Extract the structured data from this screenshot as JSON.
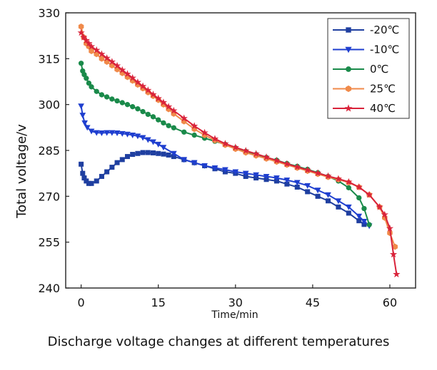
{
  "chart_data": {
    "type": "line",
    "title": "",
    "caption": "Discharge voltage changes at different temperatures",
    "xlabel": "Time/min",
    "ylabel": "Total voltage/v",
    "xlim": [
      -3,
      65
    ],
    "ylim": [
      240,
      330
    ],
    "xticks": [
      "0",
      "15",
      "30",
      "45",
      "60"
    ],
    "yticks": [
      "240",
      "255",
      "270",
      "285",
      "300",
      "315",
      "330"
    ],
    "grid": false,
    "legend_position": "top-right",
    "series": [
      {
        "name": "-20℃",
        "color": "#1f3fa0",
        "marker": "square",
        "x": [
          0,
          0.3,
          0.6,
          1,
          1.5,
          2,
          3,
          4,
          5,
          6,
          7,
          8,
          9,
          10,
          11,
          12,
          13,
          14,
          15,
          16,
          17,
          18,
          20,
          22,
          24,
          26,
          28,
          30,
          32,
          34,
          36,
          38,
          40,
          42,
          44,
          46,
          48,
          50,
          52,
          54,
          55
        ],
        "y": [
          280.5,
          277.5,
          276,
          275,
          274.2,
          274.2,
          275,
          276.5,
          278,
          279.5,
          281,
          282,
          283,
          283.7,
          284,
          284.3,
          284.3,
          284.2,
          284,
          283.8,
          283.5,
          283,
          282,
          281,
          280,
          279,
          278,
          277.5,
          276.5,
          276,
          275.5,
          275,
          274,
          273,
          271.5,
          270,
          268.5,
          266.5,
          264.5,
          262,
          260.8
        ]
      },
      {
        "name": "-10℃",
        "color": "#1f3fcf",
        "marker": "triangle-down",
        "x": [
          0,
          0.3,
          0.7,
          1.2,
          2,
          3,
          4,
          5,
          6,
          7,
          8,
          9,
          10,
          11,
          12,
          13,
          14,
          15,
          16,
          18,
          20,
          22,
          24,
          26,
          28,
          30,
          32,
          34,
          36,
          38,
          40,
          42,
          44,
          46,
          48,
          50,
          52,
          54,
          55,
          56
        ],
        "y": [
          299.5,
          296.5,
          294,
          292.5,
          291.3,
          290.8,
          290.7,
          290.8,
          290.8,
          290.7,
          290.5,
          290.3,
          290,
          289.7,
          289.2,
          288.5,
          287.8,
          287,
          286,
          284,
          282,
          281,
          280,
          279.3,
          278.7,
          278,
          277.5,
          277,
          276.5,
          276,
          275.3,
          274.5,
          273.5,
          272,
          270.5,
          268.5,
          266.5,
          263.5,
          261.8,
          260.3
        ]
      },
      {
        "name": "0℃",
        "color": "#1a8a4a",
        "marker": "circle",
        "x": [
          0,
          0.3,
          0.6,
          1,
          1.5,
          2,
          3,
          4,
          5,
          6,
          7,
          8,
          9,
          10,
          11,
          12,
          13,
          14,
          15,
          16,
          17,
          18,
          20,
          22,
          24,
          26,
          28,
          30,
          32,
          34,
          36,
          38,
          40,
          42,
          44,
          46,
          48,
          50,
          52,
          54,
          55,
          56
        ],
        "y": [
          313.5,
          311,
          309.8,
          308.6,
          307,
          305.8,
          304.3,
          303.2,
          302.5,
          301.8,
          301.2,
          300.6,
          300,
          299.3,
          298.6,
          297.7,
          296.8,
          296,
          295,
          294,
          293.1,
          292.4,
          291,
          290,
          289,
          288,
          287,
          285.8,
          284.7,
          283.7,
          282.7,
          281.8,
          280.7,
          279.8,
          278.8,
          277.7,
          276.5,
          275,
          272.8,
          269.5,
          266,
          260.7
        ]
      },
      {
        "name": "25℃",
        "color": "#f08a4a",
        "marker": "hexagon",
        "x": [
          0,
          0.5,
          1,
          1.5,
          2,
          3,
          4,
          5,
          6,
          7,
          8,
          9,
          10,
          11,
          12,
          13,
          14,
          15,
          16,
          17,
          18,
          20,
          22,
          24,
          26,
          28,
          30,
          32,
          34,
          36,
          38,
          40,
          42,
          44,
          46,
          48,
          50,
          52,
          54,
          56,
          58,
          59,
          60,
          61
        ],
        "y": [
          325.5,
          322,
          320,
          319,
          317.5,
          316.5,
          315,
          314,
          312.8,
          311.5,
          310.3,
          309,
          307.8,
          306.5,
          305.3,
          304,
          302.8,
          301.5,
          300,
          298.5,
          297,
          294.5,
          292,
          290,
          288.3,
          286.8,
          285.5,
          284.3,
          283.3,
          282.3,
          281.3,
          280.3,
          279.3,
          278.3,
          277.3,
          276.3,
          275.5,
          274.5,
          273,
          270.5,
          266.5,
          263,
          258,
          253.5
        ]
      },
      {
        "name": "40℃",
        "color": "#d9233a",
        "marker": "star",
        "x": [
          0,
          0.5,
          1,
          1.5,
          2,
          3,
          4,
          5,
          6,
          7,
          8,
          9,
          10,
          11,
          12,
          13,
          14,
          15,
          16,
          17,
          18,
          20,
          22,
          24,
          26,
          28,
          30,
          32,
          34,
          36,
          38,
          40,
          42,
          44,
          46,
          48,
          50,
          52,
          54,
          56,
          58,
          59,
          60,
          60.7,
          61.3
        ],
        "y": [
          323.5,
          322,
          321,
          320,
          319,
          317.8,
          316.5,
          315.2,
          314,
          312.7,
          311.3,
          310,
          308.7,
          307.3,
          306,
          304.7,
          303.3,
          302,
          300.7,
          299.3,
          298,
          295.5,
          293,
          290.8,
          288.8,
          287.2,
          286,
          284.9,
          283.9,
          282.8,
          281.7,
          280.6,
          279.6,
          278.6,
          277.6,
          276.6,
          275.7,
          274.7,
          273,
          270.5,
          266.5,
          264,
          259.5,
          251,
          244.5
        ]
      }
    ]
  }
}
